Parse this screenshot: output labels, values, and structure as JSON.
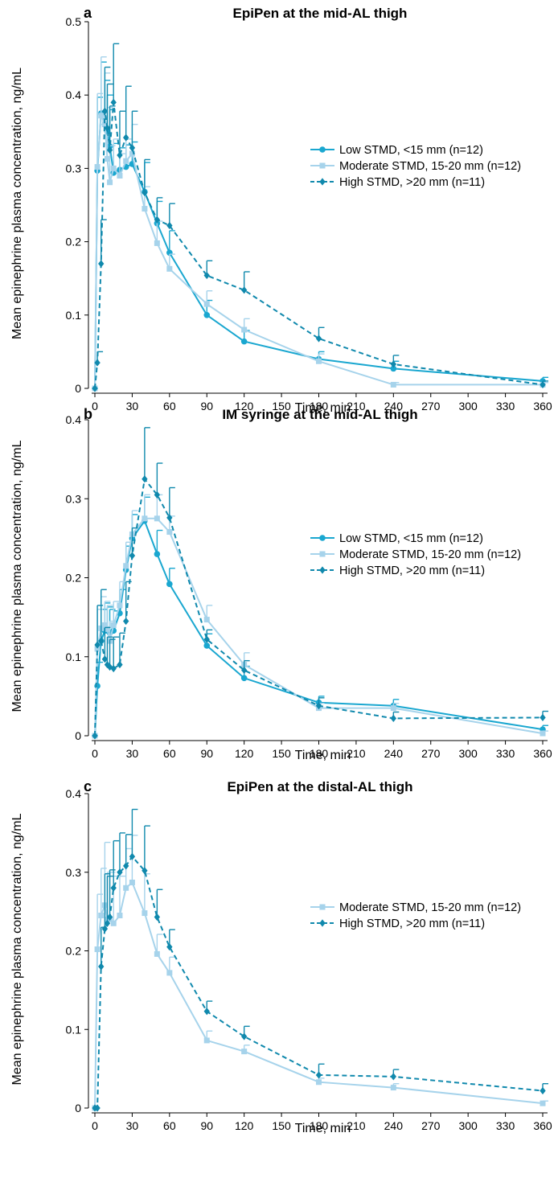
{
  "chart_data": [
    {
      "type": "line",
      "panel": "a",
      "title": "EpiPen at the mid-AL thigh",
      "xlabel": "Time, min",
      "ylabel": "Mean epinephrine plasma concentration, ng/mL",
      "xlim": [
        0,
        360
      ],
      "ylim": [
        0,
        0.5
      ],
      "xticks": [
        0,
        30,
        60,
        90,
        120,
        150,
        180,
        210,
        240,
        270,
        300,
        330,
        360
      ],
      "yticks": [
        0,
        0.1,
        0.2,
        0.3,
        0.4,
        0.5
      ],
      "ytick_labels": [
        "0",
        "0.1",
        "0.2",
        "0.3",
        "0.4",
        "0.5"
      ],
      "grid": false,
      "legend_position": "right",
      "series": [
        {
          "name": "Low STMD, <15 mm (n=12)",
          "color": "#1aa7d0",
          "marker": "circle",
          "dash": "solid",
          "x": [
            0,
            2,
            5,
            8,
            10,
            12,
            15,
            20,
            25,
            30,
            40,
            50,
            60,
            90,
            120,
            180,
            240,
            360
          ],
          "y": [
            0,
            0.297,
            0.375,
            0.36,
            0.35,
            0.33,
            0.294,
            0.298,
            0.302,
            0.306,
            0.268,
            0.225,
            0.185,
            0.1,
            0.064,
            0.04,
            0.027,
            0.01
          ],
          "err": [
            0,
            0.1,
            0.07,
            0.06,
            0.05,
            0.05,
            0.04,
            0.03,
            0.03,
            0.03,
            0.04,
            0.03,
            0.03,
            0.02,
            0.015,
            0.01,
            0.01,
            0.005
          ]
        },
        {
          "name": "Moderate STMD, 15-20 mm (n=12)",
          "color": "#a6d3eb",
          "marker": "square",
          "dash": "solid",
          "x": [
            0,
            2,
            5,
            8,
            10,
            12,
            15,
            20,
            25,
            30,
            40,
            50,
            60,
            90,
            120,
            180,
            240,
            360
          ],
          "y": [
            0,
            0.302,
            0.372,
            0.36,
            0.313,
            0.281,
            0.3,
            0.29,
            0.31,
            0.32,
            0.245,
            0.198,
            0.163,
            0.115,
            0.08,
            0.037,
            0.005,
            0.005
          ],
          "err": [
            0,
            0.1,
            0.08,
            0.07,
            0.07,
            0.05,
            0.04,
            0.03,
            0.03,
            0.04,
            0.03,
            0.03,
            0.02,
            0.018,
            0.015,
            0.01,
            0.003,
            0.003
          ]
        },
        {
          "name": "High STMD, >20 mm (n=11)",
          "color": "#1089ad",
          "marker": "diamond",
          "dash": "dashed",
          "x": [
            0,
            2,
            5,
            8,
            10,
            12,
            15,
            20,
            25,
            30,
            40,
            50,
            60,
            90,
            120,
            180,
            240,
            360
          ],
          "y": [
            0,
            0.035,
            0.17,
            0.378,
            0.355,
            0.325,
            0.39,
            0.318,
            0.342,
            0.328,
            0.267,
            0.23,
            0.222,
            0.154,
            0.134,
            0.068,
            0.033,
            0.005
          ],
          "err": [
            0,
            0.015,
            0.06,
            0.06,
            0.06,
            0.06,
            0.08,
            0.06,
            0.07,
            0.05,
            0.045,
            0.03,
            0.03,
            0.02,
            0.025,
            0.015,
            0.012,
            0.005
          ]
        }
      ]
    },
    {
      "type": "line",
      "panel": "b",
      "title": "IM syringe at the mid-AL thigh",
      "xlabel": "Time, min",
      "ylabel": "Mean epinephrine plasma concentration, ng/mL",
      "xlim": [
        0,
        360
      ],
      "ylim": [
        0,
        0.4
      ],
      "xticks": [
        0,
        30,
        60,
        90,
        120,
        150,
        180,
        210,
        240,
        270,
        300,
        330,
        360
      ],
      "yticks": [
        0,
        0.1,
        0.2,
        0.3,
        0.4
      ],
      "ytick_labels": [
        "0",
        "0.1",
        "0.2",
        "0.3",
        "0.4"
      ],
      "grid": false,
      "legend_position": "right",
      "series": [
        {
          "name": "Low STMD, <15 mm (n=12)",
          "color": "#1aa7d0",
          "marker": "circle",
          "dash": "solid",
          "x": [
            0,
            2,
            5,
            8,
            10,
            12,
            15,
            20,
            25,
            30,
            40,
            50,
            60,
            90,
            120,
            180,
            240,
            360
          ],
          "y": [
            0,
            0.063,
            0.12,
            0.133,
            0.133,
            0.13,
            0.133,
            0.155,
            0.21,
            0.25,
            0.272,
            0.23,
            0.192,
            0.114,
            0.073,
            0.042,
            0.038,
            0.008
          ],
          "err": [
            0,
            0.03,
            0.04,
            0.035,
            0.03,
            0.03,
            0.025,
            0.03,
            0.03,
            0.03,
            0.03,
            0.03,
            0.02,
            0.015,
            0.015,
            0.008,
            0.008,
            0.005
          ]
        },
        {
          "name": "Moderate STMD, 15-20 mm (n=12)",
          "color": "#a6d3eb",
          "marker": "square",
          "dash": "solid",
          "x": [
            0,
            2,
            5,
            8,
            10,
            12,
            15,
            20,
            25,
            30,
            40,
            50,
            60,
            90,
            120,
            180,
            240,
            360
          ],
          "y": [
            0,
            0.11,
            0.136,
            0.14,
            0.135,
            0.12,
            0.14,
            0.165,
            0.215,
            0.255,
            0.275,
            0.275,
            0.258,
            0.147,
            0.09,
            0.035,
            0.035,
            0.003
          ],
          "err": [
            0,
            0.05,
            0.04,
            0.03,
            0.03,
            0.025,
            0.03,
            0.03,
            0.03,
            0.03,
            0.03,
            0.03,
            0.02,
            0.018,
            0.015,
            0.006,
            0.006,
            0.003
          ]
        },
        {
          "name": "High STMD, >20 mm (n=11)",
          "color": "#1089ad",
          "marker": "diamond",
          "dash": "dashed",
          "x": [
            0,
            2,
            5,
            8,
            10,
            12,
            15,
            20,
            25,
            30,
            40,
            50,
            60,
            90,
            120,
            180,
            240,
            360
          ],
          "y": [
            0,
            0.115,
            0.12,
            0.097,
            0.09,
            0.087,
            0.085,
            0.09,
            0.145,
            0.228,
            0.325,
            0.305,
            0.276,
            0.122,
            0.083,
            0.038,
            0.022,
            0.023
          ],
          "err": [
            0,
            0.05,
            0.065,
            0.04,
            0.035,
            0.035,
            0.04,
            0.04,
            0.05,
            0.035,
            0.065,
            0.04,
            0.038,
            0.012,
            0.012,
            0.01,
            0.008,
            0.008
          ]
        }
      ]
    },
    {
      "type": "line",
      "panel": "c",
      "title": "EpiPen at the distal-AL thigh",
      "xlabel": "Time, min",
      "ylabel": "Mean epinephrine plasma concentration, ng/mL",
      "xlim": [
        0,
        360
      ],
      "ylim": [
        0,
        0.4
      ],
      "xticks": [
        0,
        30,
        60,
        90,
        120,
        150,
        180,
        210,
        240,
        270,
        300,
        330,
        360
      ],
      "yticks": [
        0,
        0.1,
        0.2,
        0.3,
        0.4
      ],
      "ytick_labels": [
        "0",
        "0.1",
        "0.2",
        "0.3",
        "0.4"
      ],
      "grid": false,
      "legend_position": "right",
      "series": [
        {
          "name": "Moderate STMD, 15-20 mm (n=12)",
          "color": "#a6d3eb",
          "marker": "square",
          "dash": "solid",
          "x": [
            0,
            2,
            5,
            8,
            10,
            12,
            15,
            20,
            25,
            30,
            40,
            50,
            60,
            90,
            120,
            180,
            240,
            360
          ],
          "y": [
            0,
            0.202,
            0.245,
            0.258,
            0.24,
            0.24,
            0.235,
            0.245,
            0.28,
            0.287,
            0.248,
            0.196,
            0.172,
            0.086,
            0.072,
            0.033,
            0.026,
            0.006
          ],
          "err": [
            0,
            0.07,
            0.06,
            0.08,
            0.06,
            0.06,
            0.06,
            0.05,
            0.05,
            0.06,
            0.05,
            0.025,
            0.02,
            0.012,
            0.008,
            0.005,
            0.005,
            0.003
          ]
        },
        {
          "name": "High STMD, >20 mm (n=11)",
          "color": "#1089ad",
          "marker": "diamond",
          "dash": "dashed",
          "x": [
            0,
            2,
            5,
            8,
            10,
            12,
            15,
            20,
            25,
            30,
            40,
            50,
            60,
            90,
            120,
            180,
            240,
            360
          ],
          "y": [
            0,
            0.0,
            0.18,
            0.228,
            0.235,
            0.243,
            0.28,
            0.3,
            0.308,
            0.32,
            0.302,
            0.243,
            0.205,
            0.123,
            0.091,
            0.042,
            0.04,
            0.022
          ],
          "err": [
            0,
            0,
            0.05,
            0.07,
            0.06,
            0.06,
            0.06,
            0.05,
            0.04,
            0.06,
            0.057,
            0.035,
            0.022,
            0.013,
            0.013,
            0.014,
            0.009,
            0.009
          ]
        }
      ]
    }
  ]
}
